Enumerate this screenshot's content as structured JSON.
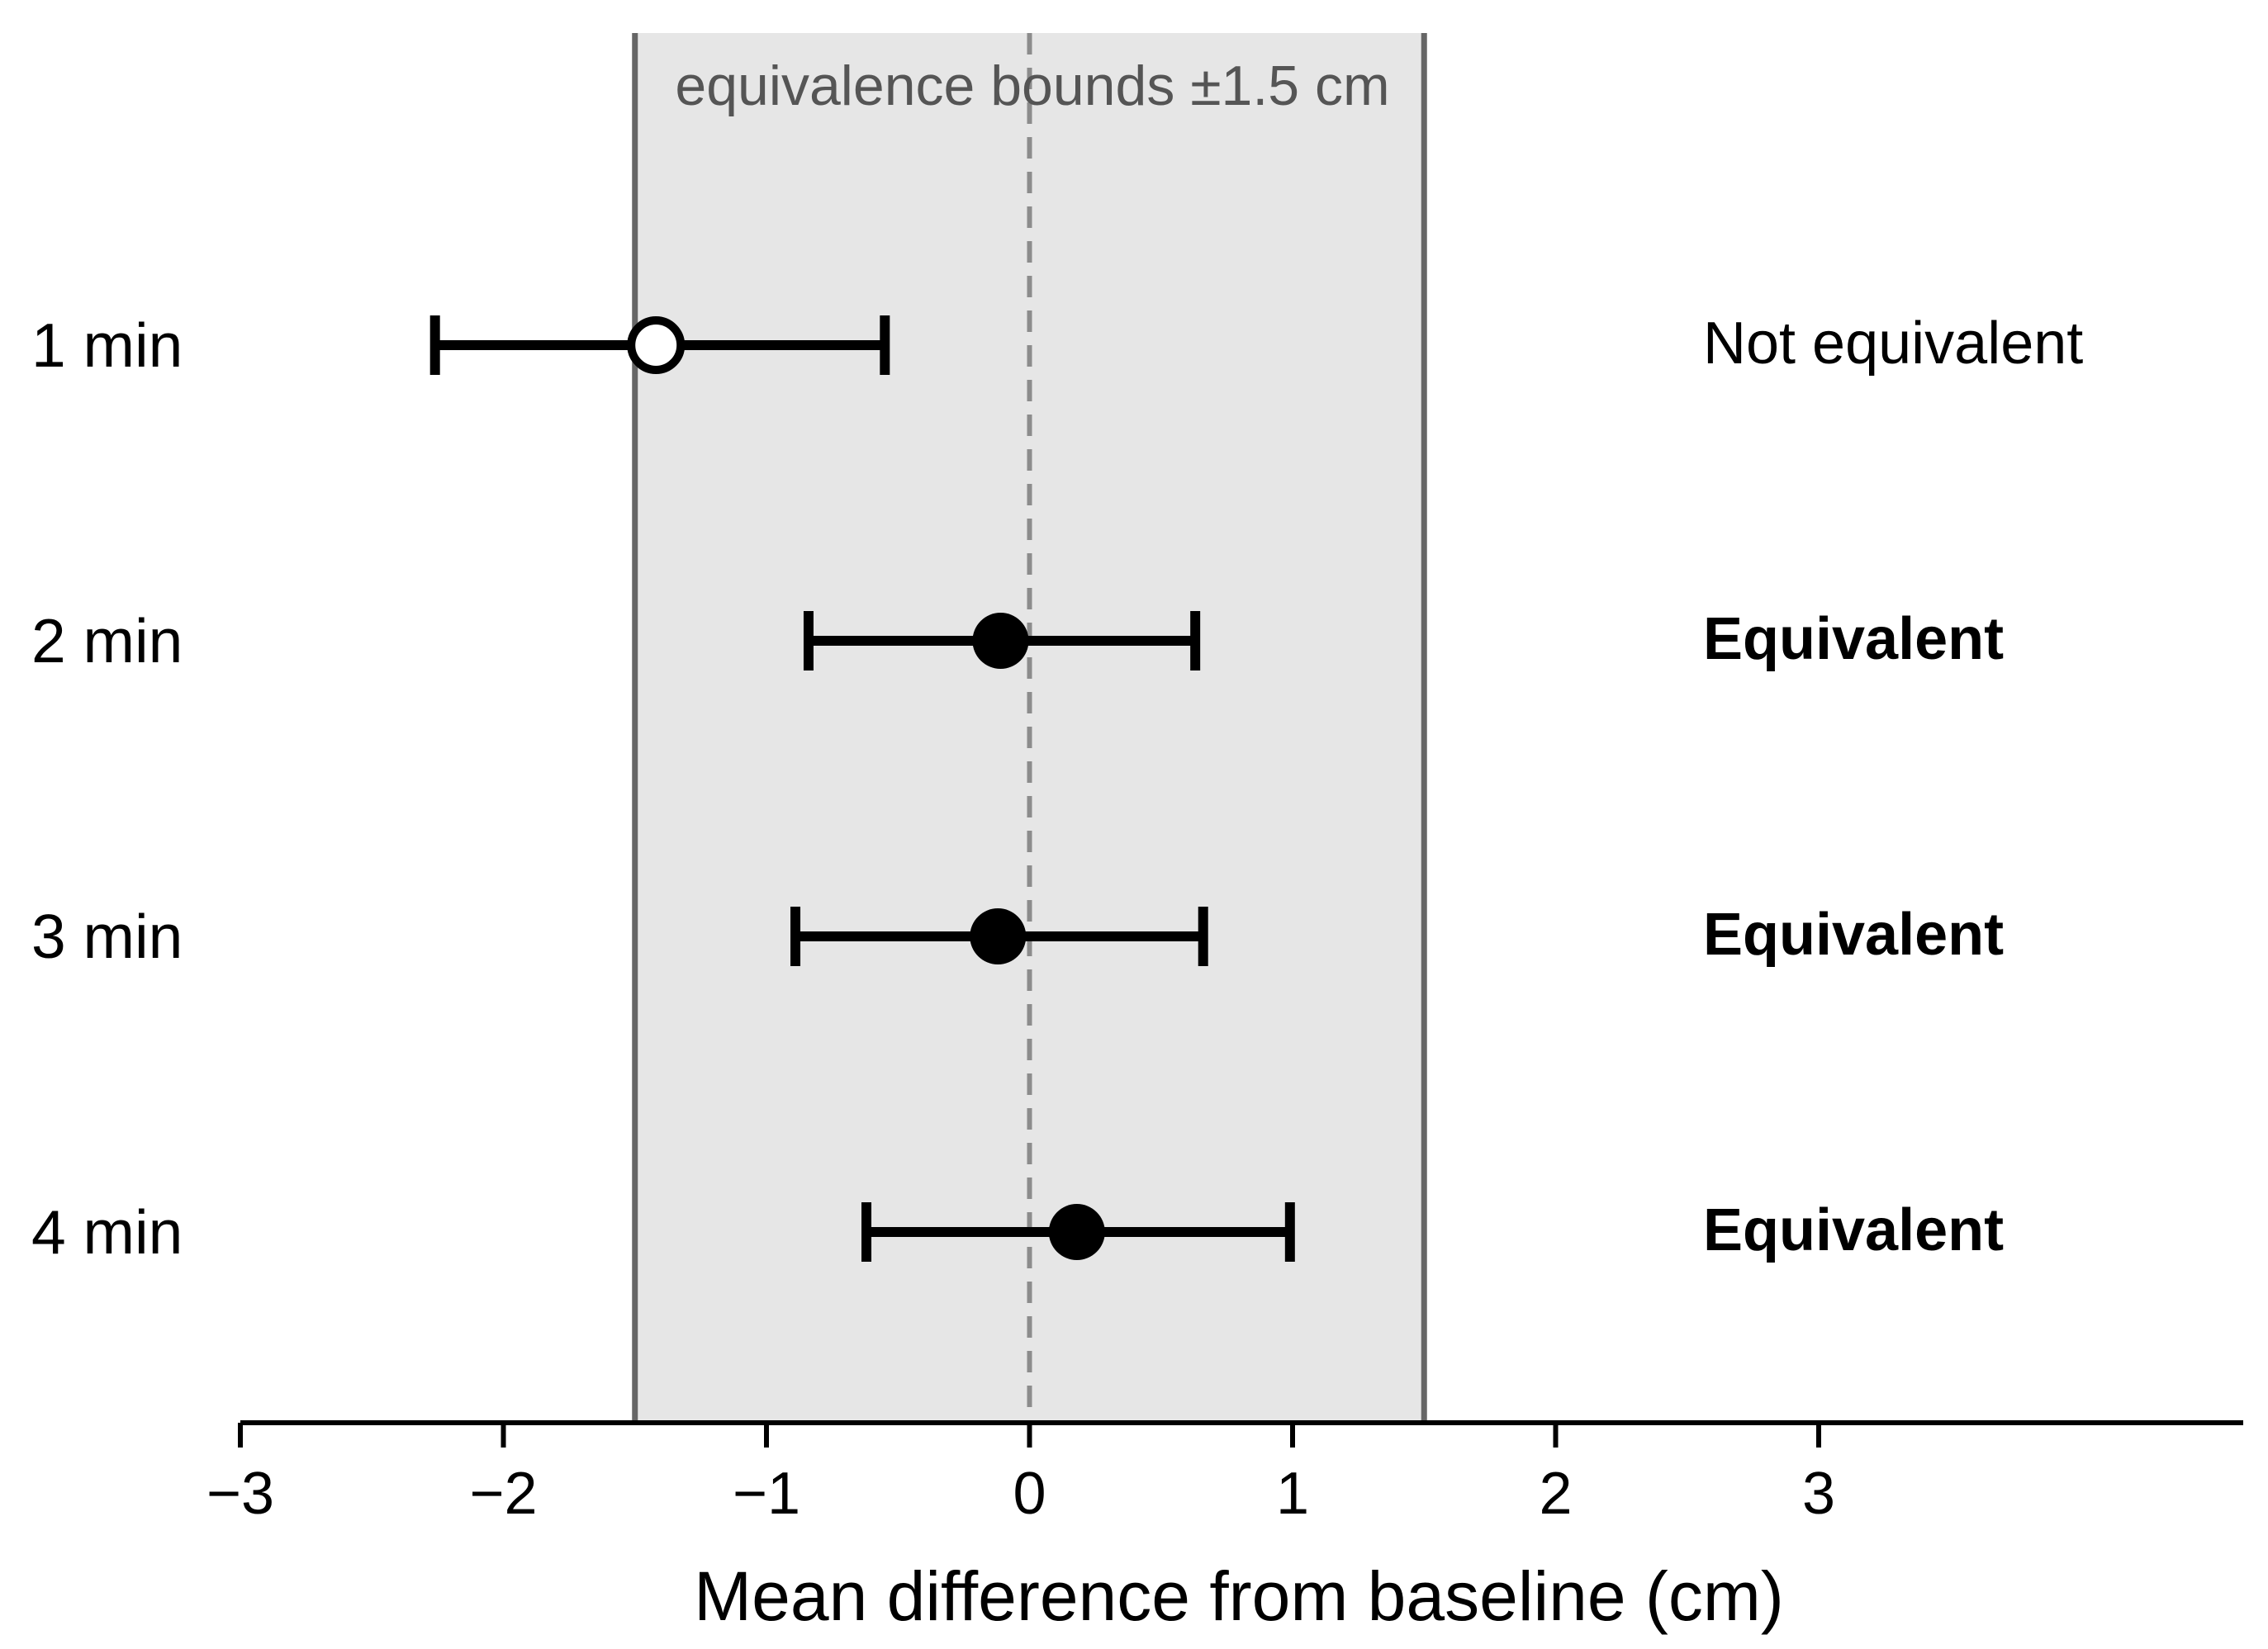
{
  "chart_data": {
    "type": "scatter",
    "subtype": "forest-plot",
    "xlabel": "Mean difference from baseline (cm)",
    "xlim": [
      -3,
      4.6
    ],
    "xticks": [
      -3,
      -2,
      -1,
      0,
      1,
      2,
      3
    ],
    "xtick_labels": [
      "−3",
      "−2",
      "−1",
      "0",
      "1",
      "2",
      "3"
    ],
    "reference_line": {
      "x": 0,
      "style": "dashed"
    },
    "equivalence_band": {
      "lower": -1.5,
      "upper": 1.5,
      "label": "equivalence bounds ±1.5 cm"
    },
    "rows": [
      {
        "label": "1 min",
        "mean": -1.42,
        "ci_low": -2.26,
        "ci_high": -0.55,
        "result": "Not equivalent",
        "equivalent": false
      },
      {
        "label": "2 min",
        "mean": -0.11,
        "ci_low": -0.84,
        "ci_high": 0.63,
        "result": "Equivalent",
        "equivalent": true
      },
      {
        "label": "3 min",
        "mean": -0.12,
        "ci_low": -0.89,
        "ci_high": 0.66,
        "result": "Equivalent",
        "equivalent": true
      },
      {
        "label": "4 min",
        "mean": 0.18,
        "ci_low": -0.62,
        "ci_high": 0.99,
        "result": "Equivalent",
        "equivalent": true
      }
    ],
    "colors": {
      "band_fill": "#e6e6e6",
      "bound_line": "#666666",
      "zero_line": "#8c8c8c",
      "marker": "#000000",
      "open_marker_fill": "#ffffff"
    }
  }
}
